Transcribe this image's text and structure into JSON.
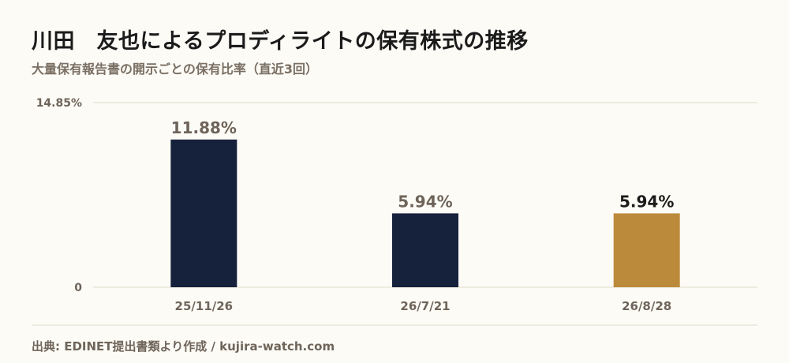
{
  "header": {
    "title": "川田　友也によるプロディライトの保有株式の推移",
    "subtitle": "大量保有報告書の開示ごとの保有比率（直近3回）"
  },
  "footer": {
    "source": "出典: EDINET提出書類より作成 / kujira-watch.com"
  },
  "colors": {
    "bar_default": "#16213b",
    "bar_highlight": "#bb8a3b",
    "label_default": "#6e645a",
    "label_highlight": "#1b1b1b",
    "grid": "#e0dccb",
    "axis_text": "#6e645a"
  },
  "chart_data": {
    "type": "bar",
    "categories": [
      "25/11/26",
      "26/7/21",
      "26/8/28"
    ],
    "values": [
      11.88,
      5.94,
      5.94
    ],
    "value_labels": [
      "11.88%",
      "5.94%",
      "5.94%"
    ],
    "highlight_index": 2,
    "ylim": [
      0,
      14.85
    ],
    "y_ticks": [
      0,
      14.85
    ],
    "y_tick_labels": [
      "0",
      "14.85%"
    ],
    "grid": true,
    "xlabel": "",
    "ylabel": ""
  }
}
